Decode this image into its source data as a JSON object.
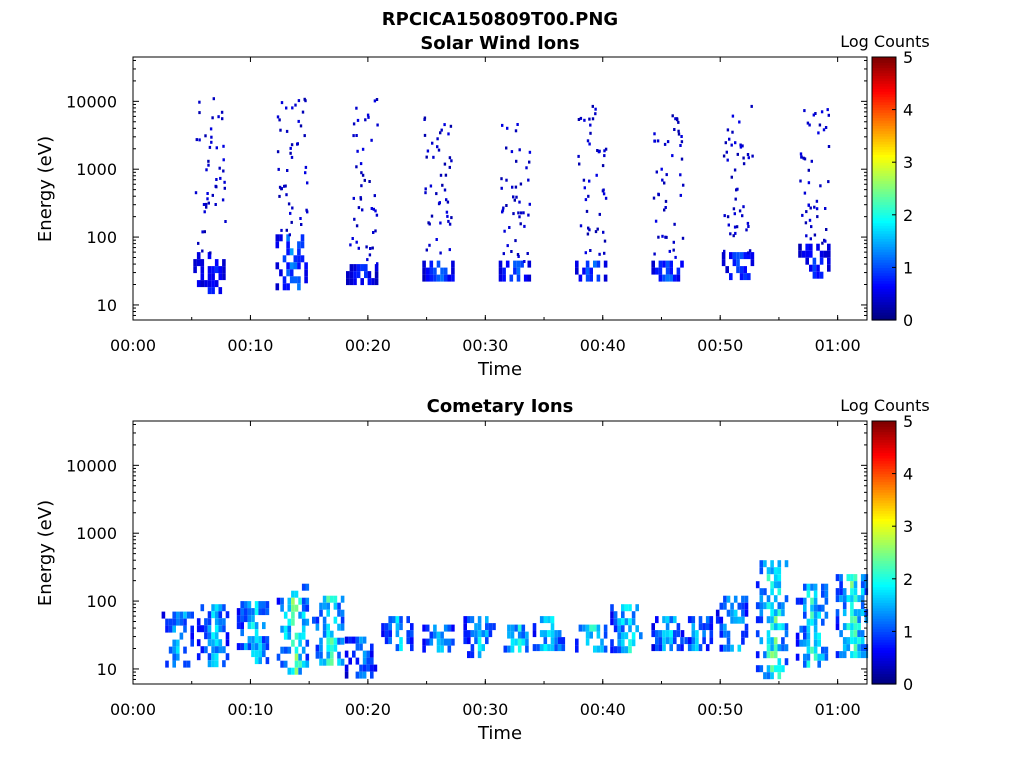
{
  "figure_title": "RPCICA150809T00.PNG",
  "chart_data": [
    {
      "type": "heatmap",
      "title": "Solar Wind Ions",
      "xlabel": "Time",
      "ylabel": "Energy (eV)",
      "xlim_minutes": [
        0,
        62.5
      ],
      "xticks": [
        "00:00",
        "00:10",
        "00:20",
        "00:30",
        "00:40",
        "00:50",
        "01:00"
      ],
      "ylim": [
        6,
        45000
      ],
      "yscale": "log",
      "yticks": [
        "10",
        "100",
        "1000",
        "10000"
      ],
      "colorbar": {
        "label": "Log Counts",
        "range": [
          0,
          5
        ],
        "ticks": [
          "0",
          "1",
          "2",
          "3",
          "4",
          "5"
        ],
        "colormap": "jet"
      },
      "bursts": [
        {
          "t": 6.5,
          "core": [
            18,
            60
          ],
          "core_level": 0.9,
          "sparse_top": 12000
        },
        {
          "t": 13.5,
          "core": [
            18,
            110
          ],
          "core_level": 1.3,
          "sparse_top": 14000
        },
        {
          "t": 19.5,
          "core": [
            20,
            40
          ],
          "core_level": 0.9,
          "sparse_top": 12000
        },
        {
          "t": 26.0,
          "core": [
            25,
            45
          ],
          "core_level": 1.1,
          "sparse_top": 6000
        },
        {
          "t": 32.5,
          "core": [
            25,
            45
          ],
          "core_level": 1.2,
          "sparse_top": 5000
        },
        {
          "t": 39.0,
          "core": [
            25,
            45
          ],
          "core_level": 1.2,
          "sparse_top": 9000
        },
        {
          "t": 45.5,
          "core": [
            25,
            45
          ],
          "core_level": 1.2,
          "sparse_top": 7000
        },
        {
          "t": 51.5,
          "core": [
            25,
            60
          ],
          "core_level": 1.0,
          "sparse_top": 9000
        },
        {
          "t": 58.0,
          "core": [
            25,
            80
          ],
          "core_level": 0.9,
          "sparse_top": 8000
        }
      ]
    },
    {
      "type": "heatmap",
      "title": "Cometary Ions",
      "xlabel": "Time",
      "ylabel": "Energy (eV)",
      "xlim_minutes": [
        0,
        62.5
      ],
      "xticks": [
        "00:00",
        "00:10",
        "00:20",
        "00:30",
        "00:40",
        "00:50",
        "01:00"
      ],
      "ylim": [
        6,
        45000
      ],
      "yscale": "log",
      "yticks": [
        "10",
        "100",
        "1000",
        "10000"
      ],
      "colorbar": {
        "label": "Log Counts",
        "range": [
          0,
          5
        ],
        "ticks": [
          "0",
          "1",
          "2",
          "3",
          "4",
          "5"
        ],
        "colormap": "jet"
      },
      "bursts": [
        {
          "t": 3.8,
          "core": [
            12,
            70
          ],
          "core_level": 1.8
        },
        {
          "t": 6.8,
          "core": [
            12,
            90
          ],
          "core_level": 1.7
        },
        {
          "t": 10.2,
          "core": [
            12,
            100
          ],
          "core_level": 1.9
        },
        {
          "t": 13.6,
          "core": [
            10,
            180
          ],
          "core_level": 2.4
        },
        {
          "t": 16.6,
          "core": [
            12,
            120
          ],
          "core_level": 2.2
        },
        {
          "t": 19.4,
          "core": [
            8,
            30
          ],
          "core_level": 1.3
        },
        {
          "t": 22.5,
          "core": [
            20,
            60
          ],
          "core_level": 1.7
        },
        {
          "t": 26.0,
          "core": [
            18,
            45
          ],
          "core_level": 1.7
        },
        {
          "t": 29.5,
          "core": [
            18,
            60
          ],
          "core_level": 1.8
        },
        {
          "t": 32.6,
          "core": [
            18,
            45
          ],
          "core_level": 1.9
        },
        {
          "t": 35.4,
          "core": [
            20,
            60
          ],
          "core_level": 2.0
        },
        {
          "t": 39.0,
          "core": [
            20,
            45
          ],
          "core_level": 2.2
        },
        {
          "t": 42.0,
          "core": [
            20,
            90
          ],
          "core_level": 2.0
        },
        {
          "t": 45.5,
          "core": [
            20,
            60
          ],
          "core_level": 1.8
        },
        {
          "t": 48.0,
          "core": [
            20,
            60
          ],
          "core_level": 1.6
        },
        {
          "t": 51.0,
          "core": [
            20,
            120
          ],
          "core_level": 1.9
        },
        {
          "t": 54.4,
          "core": [
            8,
            400
          ],
          "core_level": 2.3
        },
        {
          "t": 57.8,
          "core": [
            12,
            180
          ],
          "core_level": 2.1
        },
        {
          "t": 61.2,
          "core": [
            15,
            250
          ],
          "core_level": 2.3
        }
      ]
    }
  ]
}
